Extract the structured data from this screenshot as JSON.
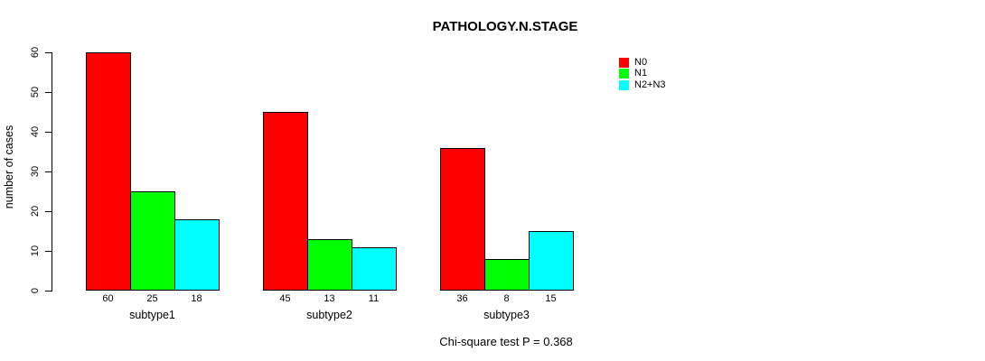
{
  "title": "PATHOLOGY.N.STAGE",
  "chart_data": {
    "type": "bar",
    "title": "PATHOLOGY.N.STAGE",
    "categories": [
      "subtype1",
      "subtype2",
      "subtype3"
    ],
    "series": [
      {
        "name": "N0",
        "color": "#FF0000",
        "values": [
          60,
          45,
          36
        ]
      },
      {
        "name": "N1",
        "color": "#00FF00",
        "values": [
          25,
          13,
          8
        ]
      },
      {
        "name": "N2+N3",
        "color": "#00FFFF",
        "values": [
          18,
          11,
          15
        ]
      }
    ],
    "bar_value_labels": [
      [
        "60",
        "25",
        "18"
      ],
      [
        "45",
        "13",
        "11"
      ],
      [
        "36",
        "8",
        "15"
      ]
    ],
    "xlabel": "",
    "ylabel": "number of cases",
    "ylim": [
      0,
      60
    ],
    "yticks": [
      0,
      10,
      20,
      30,
      40,
      50,
      60
    ],
    "grid": false,
    "legend_position": "right",
    "annotation": "Chi-square test P = 0.368"
  },
  "legend": {
    "items": [
      {
        "label": "N0",
        "color": "#FF0000"
      },
      {
        "label": "N1",
        "color": "#00FF00"
      },
      {
        "label": "N2+N3",
        "color": "#00FFFF"
      }
    ]
  },
  "footer": {
    "text": "Chi-square test P = 0.368"
  }
}
